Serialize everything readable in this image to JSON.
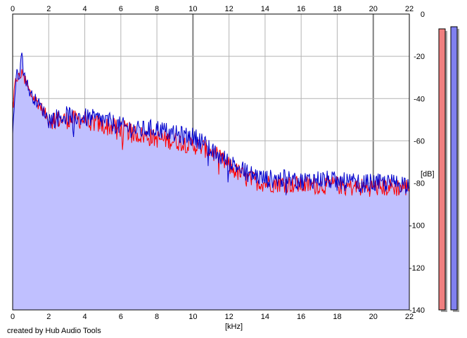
{
  "chart_data": {
    "type": "area",
    "xlabel": "[kHz]",
    "ylabel": "[dB]",
    "xlim": [
      0,
      22
    ],
    "ylim": [
      -140,
      0
    ],
    "x_ticks": [
      0,
      2,
      4,
      6,
      8,
      10,
      12,
      14,
      16,
      18,
      20,
      22
    ],
    "y_ticks": [
      0,
      -20,
      -40,
      -60,
      -80,
      -100,
      -120,
      -140
    ],
    "grid": true,
    "series": [
      {
        "color": "#ff0000",
        "x": [
          0,
          0.2,
          0.4,
          0.6,
          0.8,
          1.0,
          1.5,
          2.0,
          3.0,
          4.0,
          5.0,
          6.0,
          7.0,
          8.0,
          9.0,
          10.0,
          10.5,
          11.0,
          12.0,
          13.0,
          14.0,
          15.0,
          16.0,
          17.0,
          18.0,
          19.0,
          20.0,
          21.0,
          22.0
        ],
        "values": [
          -42,
          -30,
          -30,
          -27,
          -34,
          -38,
          -43,
          -50,
          -50,
          -50,
          -53,
          -54,
          -57,
          -59,
          -60,
          -62,
          -63,
          -65,
          -72,
          -78,
          -80,
          -80,
          -81,
          -81,
          -81,
          -82,
          -82,
          -82,
          -82
        ]
      },
      {
        "color": "#0000cc",
        "x": [
          0,
          0.2,
          0.4,
          0.5,
          0.6,
          0.8,
          1.0,
          1.5,
          2.0,
          3.0,
          4.0,
          5.0,
          6.0,
          7.0,
          8.0,
          9.0,
          10.0,
          10.5,
          11.0,
          12.0,
          13.0,
          14.0,
          15.0,
          16.0,
          17.0,
          18.0,
          19.0,
          20.0,
          21.0,
          22.0
        ],
        "values": [
          -55,
          -29,
          -28,
          -18,
          -27,
          -33,
          -38,
          -43,
          -50,
          -48,
          -49,
          -50,
          -53,
          -55,
          -54,
          -57,
          -58,
          -60,
          -65,
          -70,
          -75,
          -78,
          -78,
          -79,
          -78,
          -79,
          -80,
          -80,
          -80,
          -80
        ]
      }
    ],
    "meters": [
      {
        "color": "#f08080",
        "value": -7
      },
      {
        "color": "#8080f0",
        "value": -6
      }
    ],
    "fill_color": "#c0c0ff",
    "grid_color": "#b4b4b4",
    "major_grid_color": "#808080"
  },
  "credit": "created by Hub Audio Tools"
}
